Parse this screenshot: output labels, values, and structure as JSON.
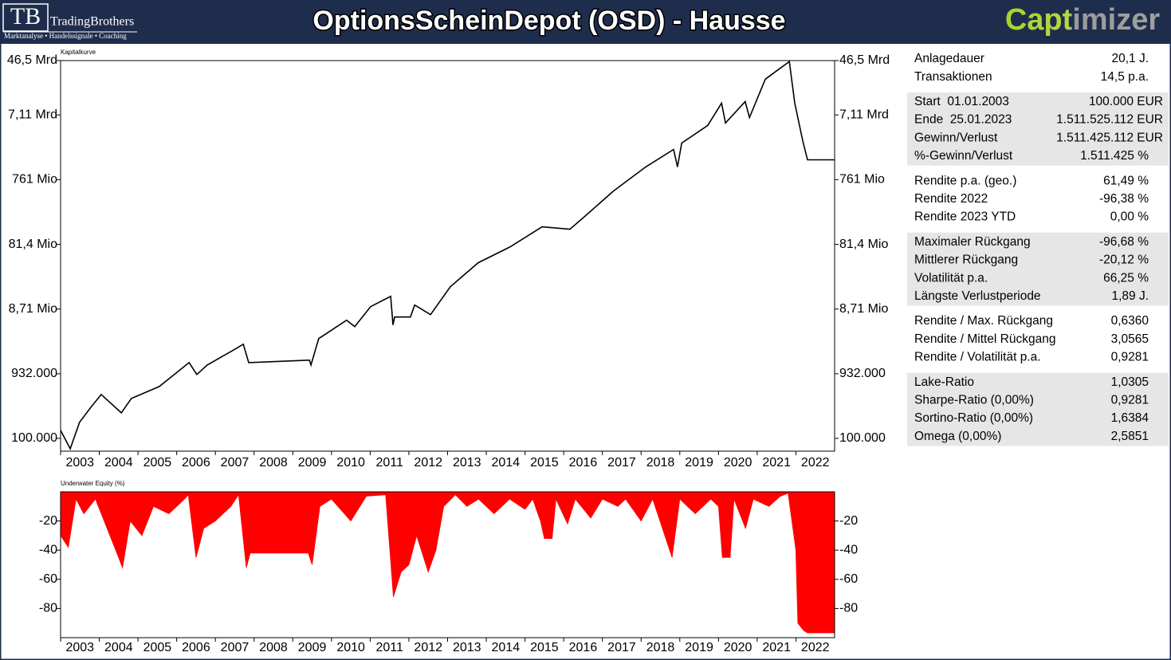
{
  "header": {
    "logo_initials": "TB",
    "logo_name": "TradingBrothers",
    "logo_tagline": "Marktanalyse • Handelssignale • Coaching",
    "title": "OptionsScheinDepot (OSD) - Hausse",
    "brand": "Captimizer"
  },
  "chart_data": [
    {
      "type": "line",
      "title": "Kapitalkurve",
      "log": true,
      "color": "#000000",
      "xlim": [
        2003,
        2023
      ],
      "xticks": [
        2003,
        2004,
        2005,
        2006,
        2007,
        2008,
        2009,
        2010,
        2011,
        2012,
        2013,
        2014,
        2015,
        2016,
        2017,
        2018,
        2019,
        2020,
        2021,
        2022
      ],
      "ylim": [
        64300,
        46500000000
      ],
      "yticks": [
        {
          "value": 100000,
          "label": "100.000"
        },
        {
          "value": 932000,
          "label": "932.000"
        },
        {
          "value": 8710000,
          "label": "8,71 Mio"
        },
        {
          "value": 81400000,
          "label": "81,4 Mio"
        },
        {
          "value": 761000000,
          "label": "761 Mio"
        },
        {
          "value": 7110000000,
          "label": "7,11 Mrd"
        },
        {
          "value": 46500000000,
          "label": "46,5 Mrd"
        }
      ],
      "x": [
        2003.0,
        2003.25,
        2003.49,
        2003.8,
        2004.05,
        2004.57,
        2004.83,
        2005.55,
        2006.32,
        2006.52,
        2006.79,
        2007.51,
        2007.72,
        2007.86,
        2009.43,
        2009.47,
        2009.67,
        2010.39,
        2010.6,
        2011.01,
        2011.53,
        2011.59,
        2011.63,
        2012.04,
        2012.15,
        2012.56,
        2013.07,
        2013.79,
        2014.62,
        2015.44,
        2016.16,
        2016.47,
        2017.29,
        2018.12,
        2018.84,
        2018.94,
        2019.05,
        2019.72,
        2020.08,
        2020.18,
        2020.69,
        2020.8,
        2021.21,
        2021.83,
        2021.97,
        2022.18,
        2022.3,
        2023.0
      ],
      "values": [
        132000,
        69800,
        174000,
        301000,
        456000,
        242000,
        397000,
        600000,
        1370000,
        908000,
        1260000,
        2190000,
        2590000,
        1370000,
        1490000,
        1260000,
        3140000,
        5920000,
        4750000,
        9460000,
        13500000,
        5020000,
        6610000,
        6610000,
        10000000,
        7180000,
        18800000,
        43100000,
        74800000,
        149000000,
        137000000,
        196000000,
        516000000,
        1180000000,
        2160000000,
        1180000000,
        2690000000,
        4950000000,
        10700000000,
        5380000000,
        11300000000,
        6520000000,
        24500000000,
        45000000000,
        10700000000,
        2850000000,
        1510000000,
        1510000000
      ]
    },
    {
      "type": "area",
      "title": "Underwater Equity (%)",
      "color": "#ff0000",
      "xlim": [
        2003,
        2023
      ],
      "xticks": [
        2003,
        2004,
        2005,
        2006,
        2007,
        2008,
        2009,
        2010,
        2011,
        2012,
        2013,
        2014,
        2015,
        2016,
        2017,
        2018,
        2019,
        2020,
        2021,
        2022
      ],
      "ylim": [
        -100,
        0
      ],
      "yticks": [
        -20,
        -40,
        -60,
        -80
      ],
      "x": [
        2003.0,
        2003.2,
        2003.4,
        2003.6,
        2003.9,
        2004.2,
        2004.5,
        2004.6,
        2004.8,
        2005.1,
        2005.4,
        2005.8,
        2006.2,
        2006.3,
        2006.5,
        2006.7,
        2007.0,
        2007.4,
        2007.6,
        2007.8,
        2007.9,
        2009.4,
        2009.5,
        2009.7,
        2010.0,
        2010.5,
        2010.9,
        2011.4,
        2011.6,
        2011.8,
        2012.0,
        2012.2,
        2012.5,
        2012.7,
        2012.9,
        2013.2,
        2013.5,
        2013.8,
        2014.2,
        2014.6,
        2015.0,
        2015.2,
        2015.4,
        2015.5,
        2015.7,
        2015.8,
        2016.1,
        2016.3,
        2016.7,
        2017.0,
        2017.4,
        2017.6,
        2018.0,
        2018.3,
        2018.8,
        2019.0,
        2019.4,
        2019.8,
        2020.0,
        2020.1,
        2020.3,
        2020.4,
        2020.7,
        2020.9,
        2021.3,
        2021.6,
        2021.8,
        2022.0,
        2022.05,
        2022.2,
        2022.3,
        2023.0
      ],
      "values": [
        -30,
        -38,
        -5,
        -15,
        -5,
        -25,
        -45,
        -52,
        -20,
        -30,
        -10,
        -15,
        -5,
        -2,
        -45,
        -25,
        -20,
        -10,
        -2,
        -52,
        -42,
        -42,
        -50,
        -10,
        -5,
        -20,
        -3,
        -2,
        -72,
        -55,
        -50,
        -30,
        -55,
        -40,
        -10,
        -2,
        -10,
        -5,
        -15,
        -5,
        -12,
        -5,
        -20,
        -32,
        -32,
        -5,
        -22,
        -5,
        -18,
        -5,
        -10,
        -5,
        -20,
        -5,
        -45,
        -5,
        -15,
        -5,
        -10,
        -45,
        -45,
        -5,
        -25,
        -5,
        -10,
        -3,
        -1,
        -40,
        -90,
        -95,
        -96.7,
        -96.7
      ]
    }
  ],
  "stats": {
    "groups": [
      {
        "shaded": false,
        "rows": [
          [
            "Anlagedauer",
            "20,1 J."
          ],
          [
            "Transaktionen",
            "14,5 p.a."
          ]
        ]
      },
      {
        "shaded": true,
        "rows": [
          [
            "Start  01.01.2003",
            "100.000 EUR"
          ],
          [
            "Ende  25.01.2023",
            "1.511.525.112 EUR"
          ],
          [
            "Gewinn/Verlust",
            "1.511.425.112 EUR"
          ],
          [
            "%-Gewinn/Verlust",
            "1.511.425 %"
          ]
        ]
      },
      {
        "shaded": false,
        "rows": [
          [
            "Rendite p.a. (geo.)",
            "61,49 %"
          ],
          [
            "Rendite 2022",
            "-96,38 %"
          ],
          [
            "Rendite 2023 YTD",
            "0,00 %"
          ]
        ]
      },
      {
        "shaded": true,
        "rows": [
          [
            "Maximaler Rückgang",
            "-96,68 %"
          ],
          [
            "Mittlerer Rückgang",
            "-20,12 %"
          ],
          [
            "Volatilität p.a.",
            "66,25 %"
          ],
          [
            "Längste Verlustperiode",
            "1,89 J."
          ]
        ]
      },
      {
        "shaded": false,
        "rows": [
          [
            "Rendite / Max. Rückgang",
            "0,6360"
          ],
          [
            "Rendite / Mittel Rückgang",
            "3,0565"
          ],
          [
            "Rendite / Volatilität p.a.",
            "0,9281"
          ]
        ]
      },
      {
        "shaded": true,
        "rows": [
          [
            "Lake-Ratio",
            "1,0305"
          ],
          [
            "Sharpe-Ratio (0,00%)",
            "0,9281"
          ],
          [
            "Sortino-Ratio (0,00%)",
            "1,6384"
          ],
          [
            "Omega (0,00%)",
            "2,5851"
          ]
        ]
      }
    ]
  }
}
